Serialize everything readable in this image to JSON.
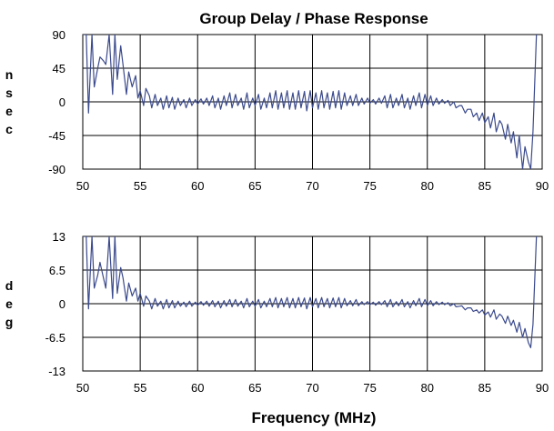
{
  "chart_data": [
    {
      "type": "line",
      "title": "Group Delay / Phase Response",
      "xlabel": "",
      "ylabel": "nsec",
      "xlim": [
        50,
        90
      ],
      "ylim": [
        -90,
        90
      ],
      "xticks": [
        "50",
        "55",
        "60",
        "65",
        "70",
        "75",
        "80",
        "85",
        "90"
      ],
      "yticks": [
        "90",
        "45",
        "0",
        "-45",
        "-90"
      ],
      "grid": true,
      "line_color": "#3b4a8c",
      "series": [
        {
          "x": [
            50.0,
            50.3,
            50.5,
            50.8,
            51.0,
            51.3,
            51.5,
            51.8,
            52.0,
            52.3,
            52.6,
            52.8,
            53.0,
            53.3,
            53.5,
            53.8,
            54.0,
            54.3,
            54.6,
            54.8,
            55.0,
            55.3,
            55.5,
            55.8,
            56.0,
            56.3,
            56.5,
            56.8,
            57.0,
            57.3,
            57.5,
            57.8,
            58.0,
            58.3,
            58.5,
            58.8,
            59.0,
            59.3,
            59.5,
            59.8,
            60.0,
            60.3,
            60.5,
            60.8,
            61.0,
            61.3,
            61.5,
            61.8,
            62.0,
            62.3,
            62.5,
            62.8,
            63.0,
            63.3,
            63.5,
            63.8,
            64.0,
            64.3,
            64.5,
            64.8,
            65.0,
            65.3,
            65.5,
            65.8,
            66.0,
            66.3,
            66.5,
            66.8,
            67.0,
            67.3,
            67.5,
            67.8,
            68.0,
            68.3,
            68.5,
            68.8,
            69.0,
            69.3,
            69.5,
            69.8,
            70.0,
            70.3,
            70.5,
            70.8,
            71.0,
            71.3,
            71.5,
            71.8,
            72.0,
            72.3,
            72.5,
            72.8,
            73.0,
            73.3,
            73.5,
            73.8,
            74.0,
            74.3,
            74.5,
            74.8,
            75.0,
            75.3,
            75.5,
            75.8,
            76.0,
            76.3,
            76.5,
            76.8,
            77.0,
            77.3,
            77.5,
            77.8,
            78.0,
            78.3,
            78.5,
            78.8,
            79.0,
            79.3,
            79.5,
            79.8,
            80.0,
            80.3,
            80.5,
            80.8,
            81.0,
            81.3,
            81.5,
            81.8,
            82.0,
            82.3,
            82.5,
            82.8,
            83.0,
            83.3,
            83.5,
            83.8,
            84.0,
            84.3,
            84.5,
            84.8,
            85.0,
            85.3,
            85.5,
            85.8,
            86.0,
            86.3,
            86.5,
            86.8,
            87.0,
            87.3,
            87.5,
            87.8,
            88.0,
            88.3,
            88.5,
            88.8,
            89.0,
            89.2,
            89.5
          ],
          "y": [
            90,
            90,
            -15,
            90,
            20,
            45,
            60,
            55,
            50,
            90,
            10,
            90,
            30,
            75,
            50,
            10,
            40,
            20,
            35,
            5,
            15,
            -5,
            18,
            8,
            -8,
            10,
            -5,
            5,
            -10,
            8,
            -8,
            6,
            -10,
            5,
            -5,
            3,
            -8,
            5,
            -5,
            3,
            -3,
            4,
            -3,
            5,
            -5,
            8,
            -8,
            5,
            -10,
            8,
            -5,
            12,
            -8,
            10,
            -5,
            5,
            -10,
            12,
            -8,
            5,
            -5,
            10,
            -10,
            5,
            -8,
            12,
            -8,
            15,
            -10,
            12,
            -8,
            15,
            -10,
            12,
            -10,
            15,
            -8,
            14,
            -12,
            15,
            -8,
            12,
            -10,
            15,
            -8,
            12,
            -10,
            14,
            -8,
            15,
            -10,
            12,
            -5,
            8,
            -5,
            10,
            -5,
            5,
            -3,
            5,
            -2,
            3,
            -3,
            5,
            -2,
            8,
            -8,
            10,
            -8,
            5,
            -5,
            10,
            -8,
            5,
            -10,
            8,
            -5,
            12,
            -8,
            10,
            -5,
            8,
            -5,
            5,
            -3,
            3,
            -2,
            2,
            -5,
            0,
            -8,
            -5,
            -5,
            -15,
            -10,
            -10,
            -20,
            -15,
            -25,
            -15,
            -28,
            -20,
            -35,
            -15,
            -40,
            -25,
            -30,
            -50,
            -30,
            -55,
            -40,
            -75,
            -45,
            -90,
            -60,
            -80,
            -90,
            -40,
            90
          ]
        }
      ]
    },
    {
      "type": "line",
      "title": "",
      "xlabel": "Frequency (MHz)",
      "ylabel": "deg",
      "xlim": [
        50,
        90
      ],
      "ylim": [
        -13,
        13
      ],
      "xticks": [
        "50",
        "55",
        "60",
        "65",
        "70",
        "75",
        "80",
        "85",
        "90"
      ],
      "yticks": [
        "13",
        "6.5",
        "0",
        "-6.5",
        "-13"
      ],
      "grid": true,
      "line_color": "#3b4a8c",
      "series": [
        {
          "x": [
            50.0,
            50.3,
            50.5,
            50.8,
            51.0,
            51.3,
            51.5,
            51.8,
            52.0,
            52.3,
            52.6,
            52.8,
            53.0,
            53.3,
            53.5,
            53.8,
            54.0,
            54.3,
            54.6,
            54.8,
            55.0,
            55.3,
            55.5,
            55.8,
            56.0,
            56.3,
            56.5,
            56.8,
            57.0,
            57.3,
            57.5,
            57.8,
            58.0,
            58.3,
            58.5,
            58.8,
            59.0,
            59.3,
            59.5,
            59.8,
            60.0,
            60.3,
            60.5,
            60.8,
            61.0,
            61.3,
            61.5,
            61.8,
            62.0,
            62.3,
            62.5,
            62.8,
            63.0,
            63.3,
            63.5,
            63.8,
            64.0,
            64.3,
            64.5,
            64.8,
            65.0,
            65.3,
            65.5,
            65.8,
            66.0,
            66.3,
            66.5,
            66.8,
            67.0,
            67.3,
            67.5,
            67.8,
            68.0,
            68.3,
            68.5,
            68.8,
            69.0,
            69.3,
            69.5,
            69.8,
            70.0,
            70.3,
            70.5,
            70.8,
            71.0,
            71.3,
            71.5,
            71.8,
            72.0,
            72.3,
            72.5,
            72.8,
            73.0,
            73.3,
            73.5,
            73.8,
            74.0,
            74.3,
            74.5,
            74.8,
            75.0,
            75.3,
            75.5,
            75.8,
            76.0,
            76.3,
            76.5,
            76.8,
            77.0,
            77.3,
            77.5,
            77.8,
            78.0,
            78.3,
            78.5,
            78.8,
            79.0,
            79.3,
            79.5,
            79.8,
            80.0,
            80.3,
            80.5,
            80.8,
            81.0,
            81.3,
            81.5,
            81.8,
            82.0,
            82.3,
            82.5,
            82.8,
            83.0,
            83.3,
            83.5,
            83.8,
            84.0,
            84.3,
            84.5,
            84.8,
            85.0,
            85.3,
            85.5,
            85.8,
            86.0,
            86.3,
            86.5,
            86.8,
            87.0,
            87.3,
            87.5,
            87.8,
            88.0,
            88.3,
            88.5,
            88.8,
            89.0,
            89.2,
            89.5
          ],
          "y": [
            13,
            13,
            -1,
            13,
            3,
            5.5,
            8,
            5,
            3,
            13,
            1,
            13,
            2,
            7,
            5,
            0.5,
            4,
            1.5,
            3,
            0.5,
            2,
            -0.5,
            1.5,
            0.5,
            -1,
            1,
            -0.5,
            0.5,
            -1,
            0.8,
            -0.8,
            0.6,
            -0.8,
            0.5,
            -0.5,
            0.3,
            -0.6,
            0.5,
            -0.5,
            0.3,
            -0.3,
            0.4,
            -0.3,
            0.5,
            -0.5,
            0.6,
            -0.6,
            0.5,
            -0.8,
            0.6,
            -0.5,
            0.8,
            -0.6,
            0.8,
            -0.5,
            0.5,
            -0.8,
            1,
            -0.6,
            0.5,
            -0.5,
            0.8,
            -0.8,
            0.5,
            -0.6,
            1,
            -0.6,
            1.2,
            -0.8,
            1,
            -0.6,
            1.2,
            -0.8,
            1,
            -0.8,
            1.2,
            -0.6,
            1.1,
            -1,
            1.2,
            -0.6,
            1,
            -0.8,
            1.2,
            -0.6,
            1,
            -0.8,
            1.1,
            -0.6,
            1.2,
            -0.8,
            1,
            -0.4,
            0.6,
            -0.4,
            0.8,
            -0.4,
            0.4,
            -0.2,
            0.4,
            -0.2,
            0.3,
            -0.3,
            0.4,
            -0.2,
            0.6,
            -0.6,
            0.8,
            -0.6,
            0.4,
            -0.4,
            0.8,
            -0.6,
            0.4,
            -0.8,
            0.6,
            -0.4,
            1,
            -0.6,
            0.8,
            -0.4,
            0.6,
            -0.4,
            0.4,
            -0.2,
            0.3,
            -0.2,
            0.2,
            -0.4,
            0,
            -0.6,
            -0.5,
            -0.4,
            -1.2,
            -0.8,
            -0.8,
            -1.5,
            -1.2,
            -1.8,
            -1.2,
            -2.2,
            -1.6,
            -2.6,
            -1.2,
            -3,
            -2,
            -2.4,
            -3.8,
            -2.4,
            -4.2,
            -3.2,
            -5.5,
            -3.6,
            -6.5,
            -4.8,
            -7.5,
            -8.5,
            -4,
            13
          ]
        }
      ]
    }
  ]
}
